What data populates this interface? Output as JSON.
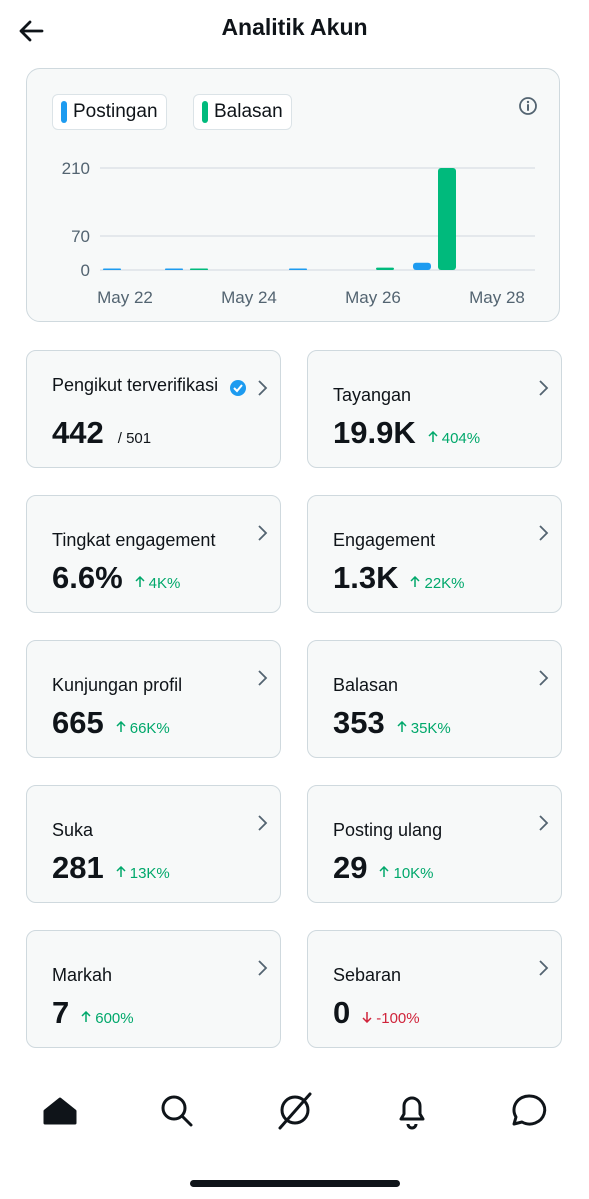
{
  "header": {
    "title": "Analitik Akun"
  },
  "chart_data": {
    "type": "bar",
    "categories": [
      "May 22",
      null,
      "May 24",
      null,
      "May 26",
      null,
      "May 28"
    ],
    "series": [
      {
        "name": "Postingan",
        "color": "#1d9bf0",
        "values": [
          1,
          1,
          0,
          1,
          0,
          15,
          0
        ]
      },
      {
        "name": "Balasan",
        "color": "#00ba7c",
        "values": [
          0,
          1,
          0,
          0,
          5,
          210,
          0
        ]
      }
    ],
    "ylim": [
      0,
      210
    ],
    "yticks": [
      0,
      70,
      210
    ],
    "grid": true
  },
  "cards": [
    {
      "label": "Pengikut terverifikasi",
      "value": "442",
      "total": "/ 501"
    },
    {
      "label": "Tayangan",
      "value": "19.9K",
      "change": "404%",
      "direction": "up"
    },
    {
      "label": "Tingkat engagement",
      "value": "6.6%",
      "change": "4K%",
      "direction": "up"
    },
    {
      "label": "Engagement",
      "value": "1.3K",
      "change": "22K%",
      "direction": "up"
    },
    {
      "label": "Kunjungan profil",
      "value": "665",
      "change": "66K%",
      "direction": "up"
    },
    {
      "label": "Balasan",
      "value": "353",
      "change": "35K%",
      "direction": "up"
    },
    {
      "label": "Suka",
      "value": "281",
      "change": "13K%",
      "direction": "up"
    },
    {
      "label": "Posting ulang",
      "value": "29",
      "change": "10K%",
      "direction": "up"
    },
    {
      "label": "Markah",
      "value": "7",
      "change": "600%",
      "direction": "up"
    },
    {
      "label": "Sebaran",
      "value": "0",
      "change": "-100%",
      "direction": "down"
    }
  ]
}
